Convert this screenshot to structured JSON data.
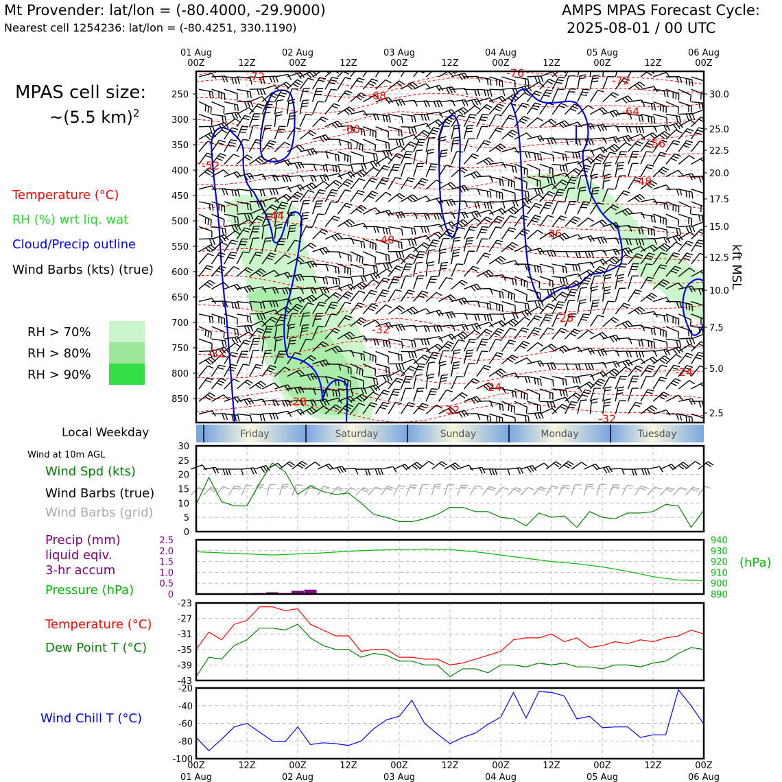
{
  "header": {
    "title_left": "Mt Provender: lat/lon = (-80.4000, -29.9000)",
    "subtitle_left": "Nearest cell 1254236: lat/lon = (-80.4251, 330.1190)",
    "title_right_1": "AMPS MPAS Forecast Cycle:",
    "title_right_2": "2025-08-01 / 00 UTC"
  },
  "cell_size": {
    "line1": "MPAS cell size:",
    "line2_base": "~(5.5 km)",
    "line2_sup": "2"
  },
  "legend_main": {
    "temperature": "Temperature (°C)",
    "rh": "RH (%) wrt liq. wat",
    "cloud": "Cloud/Precip outline",
    "wind": "Wind Barbs (kts) (true)"
  },
  "rh_legend": [
    {
      "label": "RH > 70%",
      "color": "#ccf5cc"
    },
    {
      "label": "RH > 80%",
      "color": "#9be89b"
    },
    {
      "label": "RH > 90%",
      "color": "#33dd44"
    }
  ],
  "colors": {
    "temp": "#ff0000",
    "dew": "#008000",
    "pressure": "#00bb00",
    "precip": "#800080",
    "chill": "#0000ff",
    "cloud": "#0000ff",
    "grid_barb": "#aaaaaa"
  },
  "time_axis": {
    "top_dates": [
      "01 Aug",
      "",
      "02 Aug",
      "",
      "03 Aug",
      "",
      "04 Aug",
      "",
      "05 Aug",
      "",
      "06 Aug"
    ],
    "top_hours": [
      "00Z",
      "12Z",
      "00Z",
      "12Z",
      "00Z",
      "12Z",
      "00Z",
      "12Z",
      "00Z",
      "12Z",
      "00Z"
    ],
    "bottom_hours": [
      "00Z",
      "12Z",
      "00Z",
      "12Z",
      "00Z",
      "12Z",
      "00Z",
      "12Z",
      "00Z",
      "12Z",
      "00Z"
    ],
    "bottom_dates": [
      "01 Aug",
      "",
      "02 Aug",
      "",
      "03 Aug",
      "",
      "04 Aug",
      "",
      "05 Aug",
      "",
      "06 Aug"
    ]
  },
  "weekday": {
    "label": "Local Weekday",
    "days": [
      "Friday",
      "Saturday",
      "Sunday",
      "Monday",
      "Tuesday"
    ]
  },
  "wind_panel": {
    "title": "Wind at 10m AGL",
    "legend_speed": "Wind Spd (kts)",
    "legend_true": "Wind Barbs (true)",
    "legend_grid": "Wind Barbs (grid)"
  },
  "precip_panel": {
    "legend_1": "Precip (mm)",
    "legend_2": "liquid eqiv.",
    "legend_3": "3-hr accum",
    "legend_pressure": "Pressure (hPa)",
    "right_unit": "(hPa)"
  },
  "temp_panel": {
    "legend_temp": "Temperature (°C)",
    "legend_dew": "Dew Point T (°C)"
  },
  "chill_panel": {
    "legend": "Wind Chill T (°C)"
  },
  "chart_data": [
    {
      "type": "heatmap",
      "ylabel_right": "kft MSL",
      "x_hours_range": [
        0,
        120
      ],
      "y_left_ticks": [
        "250",
        "300",
        "350",
        "400",
        "450",
        "500",
        "550",
        "600",
        "650",
        "700",
        "750",
        "800",
        "850"
      ],
      "y_right_ticks": [
        "30.0",
        "25.0",
        "22.5",
        "20.0",
        "17.5",
        "15.0",
        "12.5",
        "10.0",
        "7.5",
        "5.0",
        "2.5"
      ],
      "contour_labels": [
        "-72",
        "-76",
        "-72",
        "-68",
        "-64",
        "-60",
        "-56",
        "-52",
        "-48",
        "-44",
        "-40",
        "-36",
        "-32",
        "-28",
        "-32",
        "-24",
        "-24",
        "-28",
        "-32",
        "-32"
      ]
    },
    {
      "type": "line",
      "name": "wind10m",
      "ylim": [
        0,
        30
      ],
      "yticks": [
        "0",
        "5",
        "10",
        "15",
        "20",
        "25",
        "30"
      ],
      "x_hours": [
        0,
        3,
        6,
        9,
        12,
        15,
        18,
        21,
        24,
        27,
        30,
        33,
        36,
        39,
        42,
        45,
        48,
        51,
        54,
        57,
        60,
        63,
        66,
        69,
        72,
        75,
        78,
        81,
        84,
        87,
        90,
        93,
        96,
        99,
        102,
        105,
        108,
        111,
        114,
        117,
        120
      ],
      "wind_speed": [
        9.5,
        19,
        10.5,
        9,
        9,
        17,
        24,
        21,
        13,
        16,
        14,
        13,
        13.5,
        10,
        6,
        5,
        3.5,
        3.5,
        4.5,
        6,
        8.5,
        8.5,
        7,
        7,
        5,
        4.5,
        2,
        6.5,
        5,
        5.5,
        1.5,
        7,
        5,
        4.5,
        6.5,
        6.5,
        7,
        9.5,
        9,
        1.5,
        7.5
      ]
    },
    {
      "type": "bar",
      "name": "precip_pressure",
      "ylim_precip": [
        0,
        2.5
      ],
      "yticks_precip": [
        "0",
        "0.5",
        "1.0",
        "1.5",
        "2.0",
        "2.5"
      ],
      "ylim_pressure": [
        890,
        940
      ],
      "yticks_pressure": [
        "890",
        "900",
        "910",
        "920",
        "930",
        "940"
      ],
      "precip_x_hours": [
        15,
        18,
        21,
        24,
        27
      ],
      "precip_values": [
        0.05,
        0.08,
        0.05,
        0.15,
        0.2
      ],
      "pressure_x_hours": [
        0,
        6,
        12,
        18,
        24,
        30,
        36,
        42,
        48,
        54,
        60,
        66,
        72,
        78,
        84,
        90,
        96,
        102,
        108,
        114,
        120
      ],
      "pressure_values": [
        929,
        928,
        927,
        926,
        927,
        928,
        929.5,
        930.5,
        931,
        931.5,
        931,
        929,
        926,
        923,
        920,
        918,
        915,
        911,
        906,
        903,
        902.5
      ]
    },
    {
      "type": "line",
      "name": "temperature_dewpoint",
      "ylim": [
        -43,
        -23
      ],
      "yticks": [
        "-23",
        "-27",
        "-31",
        "-35",
        "-39",
        "-43"
      ],
      "x_hours": [
        0,
        3,
        6,
        9,
        12,
        15,
        18,
        21,
        24,
        27,
        30,
        33,
        36,
        39,
        42,
        45,
        48,
        51,
        54,
        57,
        60,
        63,
        66,
        69,
        72,
        75,
        78,
        81,
        84,
        87,
        90,
        93,
        96,
        99,
        102,
        105,
        108,
        111,
        114,
        117,
        120
      ],
      "temperature": [
        -35,
        -30.5,
        -32.5,
        -28.5,
        -27.5,
        -24,
        -24,
        -25,
        -24.5,
        -28.5,
        -30,
        -31.5,
        -31.5,
        -35.5,
        -35,
        -35,
        -37,
        -37,
        -37.5,
        -37.5,
        -39,
        -38.5,
        -37.5,
        -36.5,
        -35.5,
        -32.5,
        -32,
        -32,
        -31,
        -33,
        -32,
        -34.5,
        -34,
        -33,
        -33.5,
        -32.5,
        -33,
        -32,
        -31.5,
        -30,
        -31
      ],
      "dew_point": [
        -42,
        -37,
        -37.5,
        -34,
        -32.5,
        -29.5,
        -29.5,
        -30,
        -28.5,
        -32,
        -34,
        -35,
        -35,
        -37,
        -36,
        -36.5,
        -38,
        -38,
        -39,
        -39,
        -42,
        -40,
        -40,
        -41,
        -39,
        -39,
        -39.5,
        -38.5,
        -39,
        -38.5,
        -39.5,
        -39.5,
        -40,
        -39,
        -39,
        -39.5,
        -38.5,
        -38,
        -36,
        -34.5,
        -35
      ]
    },
    {
      "type": "line",
      "name": "wind_chill",
      "ylim": [
        -100,
        -20
      ],
      "yticks": [
        "-20",
        "-40",
        "-60",
        "-80",
        "-100"
      ],
      "x_hours": [
        0,
        3,
        6,
        9,
        12,
        15,
        18,
        21,
        24,
        27,
        30,
        33,
        36,
        39,
        42,
        45,
        48,
        51,
        54,
        57,
        60,
        63,
        66,
        69,
        72,
        75,
        78,
        81,
        84,
        87,
        90,
        93,
        96,
        99,
        102,
        105,
        108,
        111,
        114,
        117,
        120
      ],
      "wind_chill": [
        -76,
        -91,
        -78,
        -64,
        -60,
        -70,
        -80,
        -81,
        -64,
        -84,
        -82,
        -83,
        -85,
        -80,
        -66,
        -56,
        -52,
        -34,
        -60,
        -72,
        -83,
        -76,
        -71,
        -61,
        -53,
        -25,
        -54,
        -24,
        -25,
        -29,
        -55,
        -52,
        -65,
        -64,
        -64,
        -76,
        -73,
        -73,
        -22,
        -40,
        -61
      ]
    }
  ]
}
